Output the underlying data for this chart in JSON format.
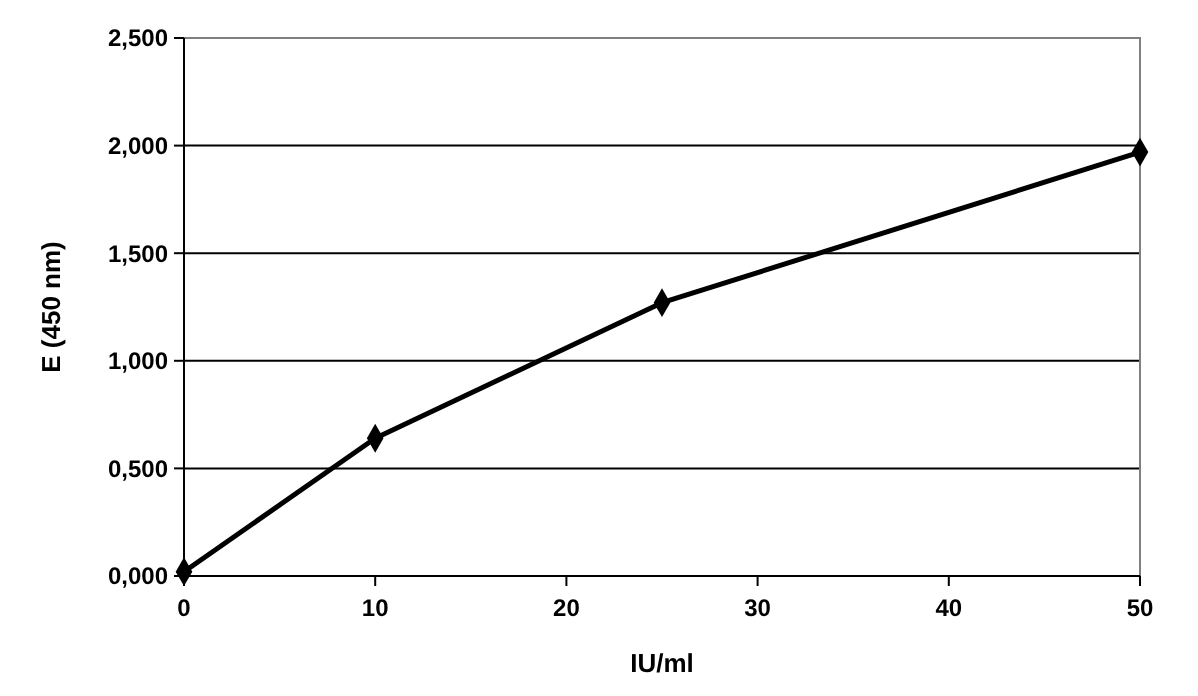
{
  "chart_data": {
    "type": "line",
    "xlabel": "IU/ml",
    "ylabel": "E (450 nm)",
    "x": [
      0,
      10,
      25,
      50
    ],
    "series": [
      {
        "color": "#000000",
        "values": [
          0.02,
          0.64,
          1.27,
          1.97
        ]
      }
    ],
    "xlim": [
      0,
      50
    ],
    "xticks": [
      0,
      10,
      20,
      30,
      40,
      50
    ],
    "ylim": [
      0,
      2.5
    ],
    "yticks": [
      {
        "value": 0,
        "label": "0,000"
      },
      {
        "value": 0.5,
        "label": "0,500"
      },
      {
        "value": 1,
        "label": "1,000"
      },
      {
        "value": 1.5,
        "label": "1,500"
      },
      {
        "value": 2,
        "label": "2,000"
      },
      {
        "value": 2.5,
        "label": "2,500"
      }
    ],
    "grid": "y",
    "marker": "diamond",
    "line_style": "solid"
  }
}
